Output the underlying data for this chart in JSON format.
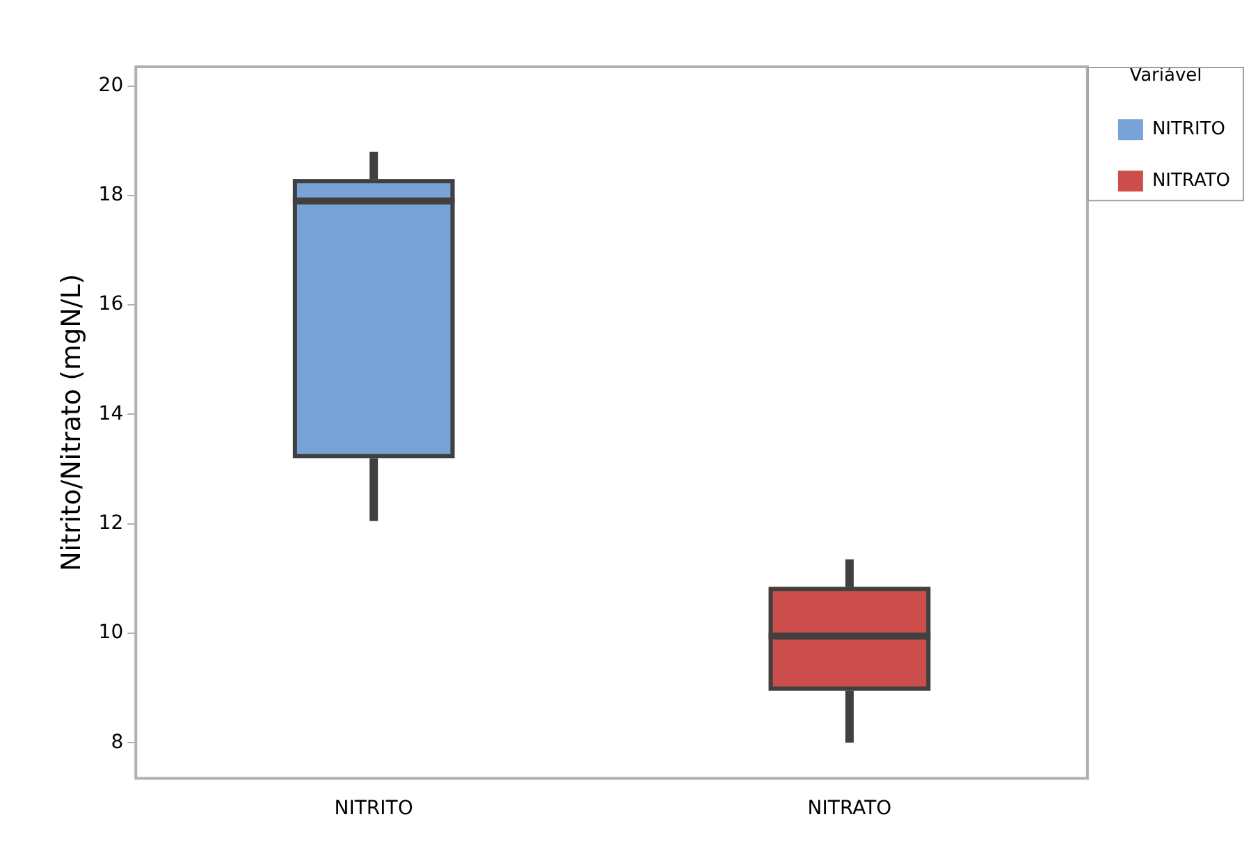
{
  "chart_data": {
    "type": "box",
    "ylabel": "Nitrito/Nitrato (mgN/L)",
    "legend_title": "Variável",
    "legend": "top right",
    "grid": false,
    "categories": [
      "NITRITO",
      "NITRATO"
    ],
    "ylim": [
      7.35,
      20.35
    ],
    "yticks": [
      8,
      10,
      12,
      14,
      16,
      18,
      20
    ],
    "series": [
      {
        "name": "NITRITO",
        "color": "#77a3d6",
        "boxes": [
          {
            "low": 12.05,
            "q1": 13.2,
            "median": 17.9,
            "q3": 18.3,
            "high": 18.8
          },
          null
        ]
      },
      {
        "name": "NITRATO",
        "color": "#cc4e4c",
        "boxes": [
          null,
          {
            "low": 8.0,
            "q1": 8.95,
            "median": 9.95,
            "q3": 10.85,
            "high": 11.35
          }
        ]
      }
    ]
  }
}
